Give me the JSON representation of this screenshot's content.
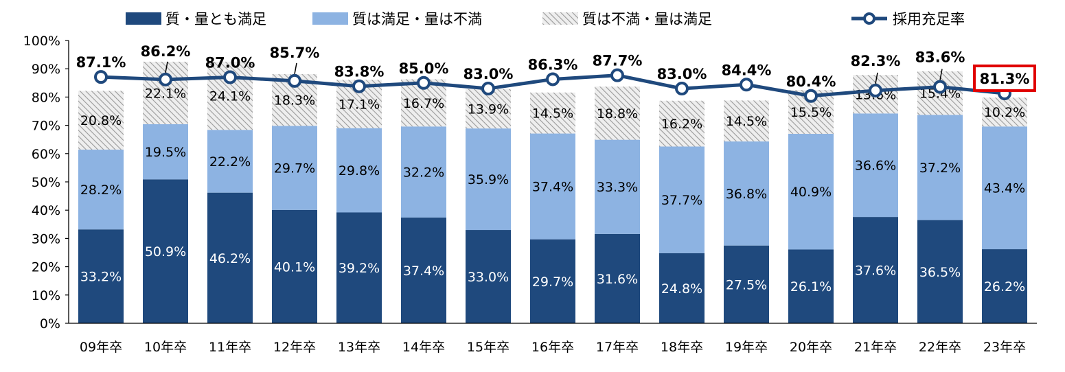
{
  "chart_data": {
    "type": "bar",
    "stacked": true,
    "categories": [
      "09年卒",
      "10年卒",
      "11年卒",
      "12年卒",
      "13年卒",
      "14年卒",
      "15年卒",
      "16年卒",
      "17年卒",
      "18年卒",
      "19年卒",
      "20年卒",
      "21年卒",
      "22年卒",
      "23年卒"
    ],
    "series": [
      {
        "name": "質・量とも満足",
        "color": "#1f497d",
        "values": [
          33.2,
          50.9,
          46.2,
          40.1,
          39.2,
          37.4,
          33.0,
          29.7,
          31.6,
          24.8,
          27.5,
          26.1,
          37.6,
          36.5,
          26.2
        ],
        "labels": [
          "33.2%",
          "50.9%",
          "46.2%",
          "40.1%",
          "39.2%",
          "37.4%",
          "33.0%",
          "29.7%",
          "31.6%",
          "24.8%",
          "27.5%",
          "26.1%",
          "37.6%",
          "36.5%",
          "26.2%"
        ]
      },
      {
        "name": "質は満足・量は不満",
        "color": "#8db3e2",
        "values": [
          28.2,
          19.5,
          22.2,
          29.7,
          29.8,
          32.2,
          35.9,
          37.4,
          33.3,
          37.7,
          36.8,
          40.9,
          36.6,
          37.2,
          43.4
        ],
        "labels": [
          "28.2%",
          "19.5%",
          "22.2%",
          "29.7%",
          "29.8%",
          "32.2%",
          "35.9%",
          "37.4%",
          "33.3%",
          "37.7%",
          "36.8%",
          "40.9%",
          "36.6%",
          "37.2%",
          "43.4%"
        ]
      },
      {
        "name": "質は不満・量は満足",
        "color": "#bfbfbf",
        "pattern": "hatched",
        "values": [
          20.8,
          22.1,
          24.1,
          18.3,
          17.1,
          16.7,
          13.9,
          14.5,
          18.8,
          16.2,
          14.5,
          15.5,
          13.6,
          15.4,
          10.2
        ],
        "labels": [
          "20.8%",
          "22.1%",
          "24.1%",
          "18.3%",
          "17.1%",
          "16.7%",
          "13.9%",
          "14.5%",
          "18.8%",
          "16.2%",
          "14.5%",
          "15.5%",
          "13.6%",
          "15.4%",
          "10.2%"
        ]
      },
      {
        "name": "採用充足率",
        "type": "line",
        "color": "#1f497d",
        "values": [
          87.1,
          86.2,
          87.0,
          85.7,
          83.8,
          85.0,
          83.0,
          86.3,
          87.7,
          83.0,
          84.4,
          80.4,
          82.3,
          83.6,
          81.3
        ],
        "labels": [
          "87.1%",
          "86.2%",
          "87.0%",
          "85.7%",
          "83.8%",
          "85.0%",
          "83.0%",
          "86.3%",
          "87.7%",
          "83.0%",
          "84.4%",
          "80.4%",
          "82.3%",
          "83.6%",
          "81.3%"
        ]
      }
    ],
    "ylim": [
      0,
      100
    ],
    "yticks": [
      "0%",
      "10%",
      "20%",
      "30%",
      "40%",
      "50%",
      "60%",
      "70%",
      "80%",
      "90%",
      "100%"
    ],
    "legend_position": "top",
    "highlight": {
      "category": "23年卒",
      "color": "#e00000"
    }
  }
}
